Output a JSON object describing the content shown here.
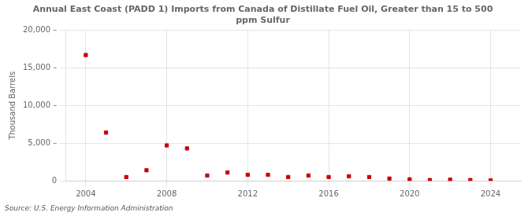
{
  "chart_data": {
    "type": "scatter",
    "title": "Annual East Coast (PADD 1) Imports from Canada of Distillate Fuel Oil, Greater than 15 to 500\nppm Sulfur",
    "ylabel": "Thousand Barrels",
    "annotations": [
      "Source: U.S. Energy Information Administration"
    ],
    "x": [
      2004,
      2005,
      2006,
      2007,
      2008,
      2009,
      2010,
      2011,
      2012,
      2013,
      2014,
      2015,
      2016,
      2017,
      2018,
      2019,
      2020,
      2021,
      2022,
      2023,
      2024
    ],
    "values": [
      16700,
      6400,
      500,
      1400,
      4700,
      4300,
      700,
      1100,
      800,
      800,
      500,
      700,
      500,
      600,
      500,
      300,
      200,
      100,
      150,
      100,
      50
    ],
    "color": "#cc0000",
    "marker": "square",
    "xlim": [
      2003.0,
      2025.5
    ],
    "xticks": [
      2004,
      2008,
      2012,
      2016,
      2020,
      2024
    ],
    "ylim": [
      0,
      20000
    ],
    "yticks": [
      0,
      {
        "value": 5000,
        "label": "5,000 –"
      },
      {
        "value": 10000,
        "label": "10,000 –"
      },
      {
        "value": 15000,
        "label": "15,000 –"
      },
      {
        "value": 20000,
        "label": "20,000 –"
      }
    ],
    "grid": true
  }
}
